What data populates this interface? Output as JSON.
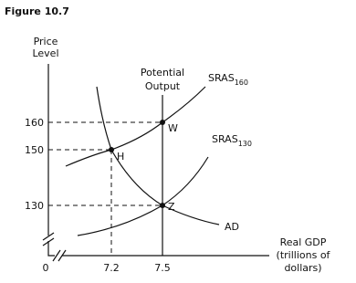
{
  "figure_title": "Figure 10.7",
  "y_axis_label": [
    "Price",
    "Level"
  ],
  "x_axis_label": [
    "Real GDP",
    "(trillions of",
    "dollars)"
  ],
  "y_ticks": [
    "160",
    "150",
    "130"
  ],
  "x_ticks": [
    "0",
    "7.2",
    "7.5"
  ],
  "vertical_line_label": [
    "Potential",
    "Output"
  ],
  "curves": [
    {
      "name": "SRAS",
      "subscript": "160"
    },
    {
      "name": "SRAS",
      "subscript": "130"
    },
    {
      "name": "AD"
    }
  ],
  "points": [
    "W",
    "H",
    "Z"
  ]
}
